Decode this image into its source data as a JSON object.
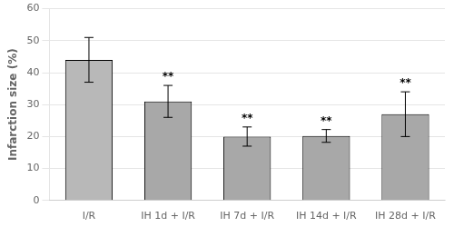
{
  "chart_data": {
    "type": "bar",
    "categories": [
      "I/R",
      "IH 1d + I/R",
      "IH 7d + I/R",
      "IH 14d + I/R",
      "IH 28d + I/R"
    ],
    "values": [
      44.0,
      31.0,
      20.0,
      20.2,
      27.0
    ],
    "errors": [
      7.0,
      5.0,
      3.0,
      2.0,
      7.0
    ],
    "colors": [
      "#b8b8b8",
      "#a8a8a8",
      "#a8a8a8",
      "#a8a8a8",
      "#a8a8a8"
    ],
    "annotations": [
      {
        "category": "IH 1d + I/R",
        "text": "**"
      },
      {
        "category": "IH 7d + I/R",
        "text": "**"
      },
      {
        "category": "IH 14d + I/R",
        "text": "**"
      },
      {
        "category": "IH 28d + I/R",
        "text": "**"
      }
    ],
    "ylabel": "Infarction size (%)",
    "ylim": [
      0,
      60
    ],
    "yticks": [
      0,
      10,
      20,
      30,
      40,
      50,
      60
    ],
    "grid": true
  }
}
